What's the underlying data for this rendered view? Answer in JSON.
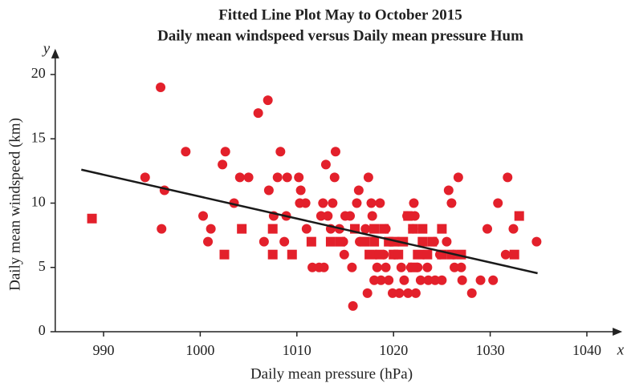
{
  "chart_data": {
    "type": "scatter",
    "title": "Fitted Line Plot May to October 2015",
    "subtitle": "Daily mean windspeed versus Daily mean pressure Hum",
    "x_label": "Daily mean pressure (hPa)",
    "y_label": "Daily mean windspeed (km)",
    "x_axis_symbol": "x",
    "y_axis_symbol": "y",
    "xlim": [
      985,
      1043
    ],
    "ylim": [
      0,
      21.5
    ],
    "xticks": [
      990,
      1000,
      1010,
      1020,
      1030,
      1040
    ],
    "yticks": [
      0,
      5,
      10,
      15,
      20
    ],
    "grid": false,
    "series": [
      {
        "marker": "circle",
        "color": "#e3202b",
        "x": [
          994.3,
          995.9,
          996,
          996.3,
          998.5,
          1000.3,
          1000.8,
          1001.1,
          1002.3,
          1002.6,
          1003.5,
          1004.1,
          1005,
          1006,
          1006.6,
          1007,
          1007.1,
          1007.6,
          1008.3,
          1008,
          1008.7,
          1008.9,
          1009,
          1010.2,
          1010.4,
          1010.3,
          1010.9,
          1011,
          1011.6,
          1012.3,
          1012.8,
          1012.5,
          1012.7,
          1013,
          1013.2,
          1013.5,
          1013.7,
          1013.9,
          1014,
          1014.4,
          1014.8,
          1014.9,
          1015,
          1015.5,
          1015.7,
          1015.8,
          1016.2,
          1016.4,
          1016.5,
          1017.1,
          1017.3,
          1017.4,
          1017.7,
          1017.8,
          1018,
          1018.2,
          1018.3,
          1018.6,
          1018.7,
          1019,
          1019.2,
          1019.2,
          1019.5,
          1019.7,
          1019.9,
          1020.1,
          1020.5,
          1020.6,
          1020.8,
          1021.1,
          1021.4,
          1021.5,
          1021.8,
          1022,
          1022.1,
          1022.2,
          1022.3,
          1022.5,
          1022.8,
          1023.1,
          1023.5,
          1023.6,
          1024.2,
          1024.3,
          1024.8,
          1025,
          1025.5,
          1025.7,
          1026,
          1026.2,
          1026.3,
          1026.7,
          1027,
          1027.1,
          1028.1,
          1029,
          1029.7,
          1030.3,
          1030.8,
          1031.6,
          1031.8,
          1032.4,
          1034.8
        ],
        "y": [
          12,
          19,
          8,
          11,
          14,
          9,
          7,
          8,
          13,
          14,
          10,
          12,
          12,
          17,
          7,
          18,
          11,
          9,
          14,
          12,
          7,
          9,
          12,
          12,
          11,
          10,
          10,
          8,
          5,
          5,
          5,
          9,
          10,
          13,
          9,
          8,
          10,
          12,
          14,
          8,
          7,
          6,
          9,
          9,
          5,
          2,
          10,
          11,
          7,
          8,
          3,
          12,
          10,
          9,
          4,
          6,
          5,
          10,
          4,
          6,
          5,
          8,
          4,
          7,
          3,
          6,
          7,
          3,
          5,
          4,
          9,
          3,
          5,
          8,
          10,
          9,
          3,
          5,
          4,
          6,
          5,
          4,
          7,
          4,
          6,
          4,
          7,
          11,
          10,
          6,
          5,
          12,
          5,
          4,
          3,
          4,
          8,
          4,
          10,
          6,
          12,
          8,
          7
        ]
      },
      {
        "marker": "square",
        "color": "#e3202b",
        "x": [
          988.8,
          1004.3,
          1002.5,
          1007.5,
          1007.5,
          1009.5,
          1011.5,
          1013.5,
          1014.5,
          1016,
          1017,
          1018,
          1018,
          1018.5,
          1019,
          1019.5,
          1020,
          1020,
          1021,
          1021.5,
          1022,
          1022.5,
          1023,
          1023,
          1023.5,
          1024,
          1025,
          1025,
          1026,
          1027,
          1032.5,
          1033,
          1020.5,
          1017.5,
          1022
        ],
        "y": [
          8.8,
          8,
          6,
          6,
          8,
          6,
          7,
          7,
          7,
          8,
          7,
          7,
          8,
          6,
          8,
          7,
          6,
          7,
          7,
          9,
          8,
          6,
          7,
          8,
          6,
          7,
          6,
          8,
          6,
          6,
          6,
          9,
          6,
          6,
          5
        ]
      }
    ],
    "fit_line": {
      "color": "#1a1a1a",
      "x": [
        987.7,
        1034.9
      ],
      "y": [
        12.6,
        4.55
      ]
    }
  }
}
